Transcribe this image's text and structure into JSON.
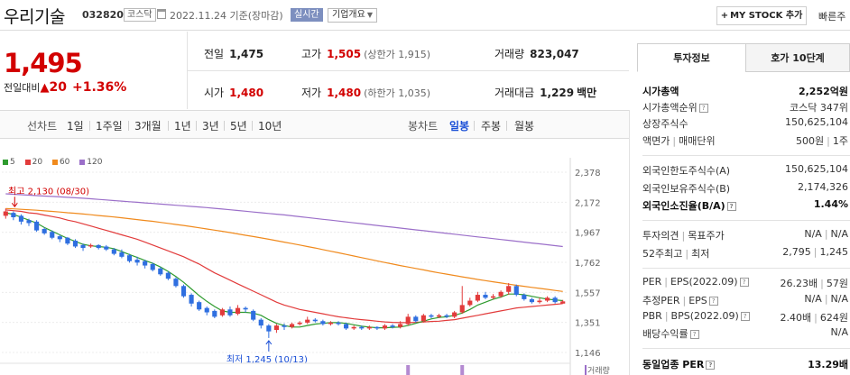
{
  "header": {
    "company_name": "우리기술",
    "code": "032820",
    "market": "코스닥",
    "date_text": "2022.11.24 기준(장마감)",
    "realtime": "실시간",
    "overview": "기업개요",
    "mystock_button": "MY STOCK 추가",
    "quick_link": "빠른주"
  },
  "price": {
    "current": "1,495",
    "change_label": "전일대비",
    "change_value": "20",
    "change_percent": "+1.36%",
    "prev_close_label": "전일",
    "prev_close": "1,475",
    "high_label": "고가",
    "high": "1,505",
    "upper_limit_label": "상한가",
    "upper_limit": "1,915",
    "volume_label": "거래량",
    "volume": "823,047",
    "open_label": "시가",
    "open": "1,480",
    "low_label": "저가",
    "low": "1,480",
    "lower_limit_label": "하한가",
    "lower_limit": "1,035",
    "amount_label": "거래대금",
    "amount": "1,229",
    "amount_unit": "백만"
  },
  "period_bar": {
    "line_chart_label": "선차트",
    "line_periods": [
      "1일",
      "1주일",
      "3개월",
      "1년",
      "3년",
      "5년",
      "10년"
    ],
    "candle_label": "봉차트",
    "candle_periods": [
      "일봉",
      "주봉",
      "월봉"
    ],
    "active": "일봉"
  },
  "chart_data": {
    "type": "candlestick",
    "legend": [
      {
        "name": "5",
        "color": "#2e9b2e"
      },
      {
        "name": "20",
        "color": "#e23b3b"
      },
      {
        "name": "60",
        "color": "#f08a1d"
      },
      {
        "name": "120",
        "color": "#9b6fc9"
      }
    ],
    "y_ticks": [
      "2,378",
      "2,172",
      "1,967",
      "1,762",
      "1,557",
      "1,351",
      "1,146"
    ],
    "ylim": [
      1146,
      2378
    ],
    "high_annotation": "최고 2,130 (08/30)",
    "low_annotation": "최저 1,245 (10/13)",
    "volume_label": "거래량",
    "up_color": "#e23b3b",
    "down_color": "#2f6fe0",
    "candles": [
      {
        "o": 2080,
        "c": 2110,
        "h": 2130,
        "l": 2060
      },
      {
        "o": 2100,
        "c": 2070,
        "h": 2110,
        "l": 2050
      },
      {
        "o": 2080,
        "c": 2040,
        "h": 2090,
        "l": 2020
      },
      {
        "o": 2050,
        "c": 2030,
        "h": 2060,
        "l": 2010
      },
      {
        "o": 2040,
        "c": 1980,
        "h": 2050,
        "l": 1970
      },
      {
        "o": 1990,
        "c": 1960,
        "h": 2000,
        "l": 1950
      },
      {
        "o": 1970,
        "c": 1930,
        "h": 1980,
        "l": 1920
      },
      {
        "o": 1940,
        "c": 1920,
        "h": 1950,
        "l": 1900
      },
      {
        "o": 1930,
        "c": 1890,
        "h": 1935,
        "l": 1880
      },
      {
        "o": 1910,
        "c": 1870,
        "h": 1920,
        "l": 1860
      },
      {
        "o": 1880,
        "c": 1860,
        "h": 1890,
        "l": 1840
      },
      {
        "o": 1870,
        "c": 1880,
        "h": 1890,
        "l": 1860
      },
      {
        "o": 1880,
        "c": 1860,
        "h": 1885,
        "l": 1850
      },
      {
        "o": 1870,
        "c": 1850,
        "h": 1880,
        "l": 1840
      },
      {
        "o": 1850,
        "c": 1820,
        "h": 1860,
        "l": 1810
      },
      {
        "o": 1830,
        "c": 1800,
        "h": 1850,
        "l": 1790
      },
      {
        "o": 1810,
        "c": 1770,
        "h": 1820,
        "l": 1760
      },
      {
        "o": 1780,
        "c": 1760,
        "h": 1800,
        "l": 1740
      },
      {
        "o": 1770,
        "c": 1740,
        "h": 1780,
        "l": 1720
      },
      {
        "o": 1750,
        "c": 1710,
        "h": 1760,
        "l": 1700
      },
      {
        "o": 1720,
        "c": 1680,
        "h": 1730,
        "l": 1670
      },
      {
        "o": 1690,
        "c": 1650,
        "h": 1700,
        "l": 1640
      },
      {
        "o": 1650,
        "c": 1600,
        "h": 1660,
        "l": 1590
      },
      {
        "o": 1600,
        "c": 1530,
        "h": 1610,
        "l": 1520
      },
      {
        "o": 1540,
        "c": 1480,
        "h": 1550,
        "l": 1460
      },
      {
        "o": 1490,
        "c": 1440,
        "h": 1500,
        "l": 1430
      },
      {
        "o": 1450,
        "c": 1420,
        "h": 1460,
        "l": 1400
      },
      {
        "o": 1430,
        "c": 1390,
        "h": 1440,
        "l": 1380
      },
      {
        "o": 1400,
        "c": 1440,
        "h": 1450,
        "l": 1390
      },
      {
        "o": 1440,
        "c": 1400,
        "h": 1460,
        "l": 1390
      },
      {
        "o": 1410,
        "c": 1450,
        "h": 1470,
        "l": 1400
      },
      {
        "o": 1450,
        "c": 1440,
        "h": 1460,
        "l": 1420
      },
      {
        "o": 1430,
        "c": 1370,
        "h": 1440,
        "l": 1360
      },
      {
        "o": 1370,
        "c": 1330,
        "h": 1380,
        "l": 1310
      },
      {
        "o": 1330,
        "c": 1290,
        "h": 1340,
        "l": 1245
      },
      {
        "o": 1300,
        "c": 1330,
        "h": 1340,
        "l": 1280
      },
      {
        "o": 1330,
        "c": 1320,
        "h": 1345,
        "l": 1300
      },
      {
        "o": 1320,
        "c": 1340,
        "h": 1350,
        "l": 1310
      },
      {
        "o": 1340,
        "c": 1350,
        "h": 1360,
        "l": 1330
      },
      {
        "o": 1350,
        "c": 1370,
        "h": 1390,
        "l": 1340
      },
      {
        "o": 1370,
        "c": 1360,
        "h": 1380,
        "l": 1350
      },
      {
        "o": 1360,
        "c": 1340,
        "h": 1370,
        "l": 1330
      },
      {
        "o": 1340,
        "c": 1350,
        "h": 1360,
        "l": 1330
      },
      {
        "o": 1350,
        "c": 1340,
        "h": 1360,
        "l": 1330
      },
      {
        "o": 1340,
        "c": 1310,
        "h": 1350,
        "l": 1300
      },
      {
        "o": 1310,
        "c": 1320,
        "h": 1330,
        "l": 1300
      },
      {
        "o": 1320,
        "c": 1310,
        "h": 1330,
        "l": 1300
      },
      {
        "o": 1310,
        "c": 1320,
        "h": 1330,
        "l": 1300
      },
      {
        "o": 1320,
        "c": 1310,
        "h": 1325,
        "l": 1300
      },
      {
        "o": 1310,
        "c": 1330,
        "h": 1340,
        "l": 1300
      },
      {
        "o": 1330,
        "c": 1320,
        "h": 1340,
        "l": 1310
      },
      {
        "o": 1320,
        "c": 1340,
        "h": 1360,
        "l": 1310
      },
      {
        "o": 1340,
        "c": 1390,
        "h": 1410,
        "l": 1330
      },
      {
        "o": 1390,
        "c": 1360,
        "h": 1400,
        "l": 1350
      },
      {
        "o": 1360,
        "c": 1400,
        "h": 1410,
        "l": 1350
      },
      {
        "o": 1400,
        "c": 1390,
        "h": 1410,
        "l": 1380
      },
      {
        "o": 1390,
        "c": 1400,
        "h": 1410,
        "l": 1380
      },
      {
        "o": 1400,
        "c": 1390,
        "h": 1410,
        "l": 1380
      },
      {
        "o": 1390,
        "c": 1420,
        "h": 1430,
        "l": 1380
      },
      {
        "o": 1420,
        "c": 1470,
        "h": 1600,
        "l": 1410
      },
      {
        "o": 1470,
        "c": 1500,
        "h": 1520,
        "l": 1460
      },
      {
        "o": 1500,
        "c": 1540,
        "h": 1560,
        "l": 1490
      },
      {
        "o": 1540,
        "c": 1520,
        "h": 1560,
        "l": 1510
      },
      {
        "o": 1520,
        "c": 1530,
        "h": 1545,
        "l": 1510
      },
      {
        "o": 1530,
        "c": 1560,
        "h": 1570,
        "l": 1520
      },
      {
        "o": 1560,
        "c": 1600,
        "h": 1620,
        "l": 1540
      },
      {
        "o": 1600,
        "c": 1540,
        "h": 1610,
        "l": 1530
      },
      {
        "o": 1540,
        "c": 1510,
        "h": 1550,
        "l": 1500
      },
      {
        "o": 1510,
        "c": 1490,
        "h": 1520,
        "l": 1480
      },
      {
        "o": 1490,
        "c": 1500,
        "h": 1520,
        "l": 1480
      },
      {
        "o": 1500,
        "c": 1520,
        "h": 1530,
        "l": 1490
      },
      {
        "o": 1520,
        "c": 1490,
        "h": 1530,
        "l": 1480
      },
      {
        "o": 1480,
        "c": 1495,
        "h": 1505,
        "l": 1480
      }
    ],
    "ma5": [
      2100,
      2090,
      2070,
      2050,
      2030,
      2000,
      1975,
      1950,
      1925,
      1905,
      1885,
      1875,
      1870,
      1865,
      1855,
      1835,
      1815,
      1795,
      1775,
      1755,
      1730,
      1700,
      1665,
      1625,
      1580,
      1535,
      1495,
      1460,
      1430,
      1420,
      1420,
      1420,
      1415,
      1400,
      1370,
      1345,
      1330,
      1320,
      1320,
      1330,
      1340,
      1345,
      1350,
      1350,
      1345,
      1335,
      1325,
      1320,
      1315,
      1315,
      1318,
      1320,
      1330,
      1345,
      1360,
      1375,
      1385,
      1390,
      1400,
      1415,
      1440,
      1470,
      1490,
      1510,
      1525,
      1545,
      1545,
      1540,
      1530,
      1520,
      1510,
      1505,
      1500
    ],
    "ma20": [
      2120,
      2115,
      2110,
      2100,
      2095,
      2085,
      2075,
      2065,
      2050,
      2040,
      2025,
      2010,
      1995,
      1980,
      1965,
      1950,
      1935,
      1920,
      1900,
      1880,
      1860,
      1840,
      1820,
      1800,
      1775,
      1750,
      1720,
      1690,
      1665,
      1640,
      1615,
      1590,
      1565,
      1540,
      1515,
      1490,
      1470,
      1455,
      1440,
      1430,
      1420,
      1410,
      1400,
      1390,
      1383,
      1376,
      1370,
      1365,
      1360,
      1355,
      1352,
      1350,
      1350,
      1352,
      1355,
      1358,
      1360,
      1365,
      1370,
      1380,
      1390,
      1400,
      1410,
      1420,
      1430,
      1440,
      1450,
      1455,
      1460,
      1465,
      1470,
      1475,
      1480
    ],
    "ma60": [
      2130,
      2127,
      2124,
      2121,
      2118,
      2114,
      2110,
      2106,
      2101,
      2097,
      2092,
      2087,
      2082,
      2077,
      2072,
      2066,
      2060,
      2054,
      2048,
      2042,
      2035,
      2028,
      2021,
      2014,
      2006,
      1998,
      1990,
      1982,
      1974,
      1965,
      1956,
      1947,
      1938,
      1929,
      1920,
      1910,
      1900,
      1890,
      1880,
      1870,
      1860,
      1849,
      1838,
      1827,
      1816,
      1805,
      1794,
      1783,
      1772,
      1761,
      1750,
      1740,
      1730,
      1720,
      1710,
      1700,
      1690,
      1681,
      1672,
      1663,
      1654,
      1645,
      1637,
      1629,
      1621,
      1613,
      1605,
      1598,
      1591,
      1584,
      1577,
      1570,
      1563
    ],
    "ma120": [
      2230,
      2227,
      2224,
      2221,
      2218,
      2215,
      2212,
      2209,
      2206,
      2203,
      2200,
      2196,
      2192,
      2188,
      2184,
      2180,
      2176,
      2172,
      2168,
      2164,
      2160,
      2156,
      2152,
      2148,
      2144,
      2140,
      2136,
      2131,
      2126,
      2121,
      2116,
      2111,
      2106,
      2101,
      2096,
      2091,
      2086,
      2080,
      2074,
      2068,
      2062,
      2056,
      2050,
      2044,
      2038,
      2032,
      2026,
      2020,
      2014,
      2008,
      2002,
      1996,
      1990,
      1984,
      1978,
      1972,
      1966,
      1960,
      1954,
      1948,
      1942,
      1936,
      1930,
      1924,
      1918,
      1912,
      1906,
      1900,
      1894,
      1888,
      1882,
      1876,
      1870
    ]
  },
  "invest_panel": {
    "tab_active": "투자정보",
    "tab_inactive": "호가 10단계",
    "market_cap_label": "시가총액",
    "market_cap": "2,252억원",
    "cap_rank_label": "시가총액순위",
    "cap_rank": "코스닥 347위",
    "shares_label": "상장주식수",
    "shares": "150,625,104",
    "par_label": "액면가",
    "unit_label": "매매단위",
    "par_value": "500원",
    "unit_value": "1주",
    "foreign_limit_label": "외국인한도주식수(A)",
    "foreign_limit": "150,625,104",
    "foreign_hold_label": "외국인보유주식수(B)",
    "foreign_hold": "2,174,326",
    "foreign_ratio_label": "외국인소진율(B/A)",
    "foreign_ratio": "1.44%",
    "opinion_label": "투자의견",
    "target_label": "목표주가",
    "opinion_value": "N/A",
    "target_value": "N/A",
    "w52_high_label": "52주최고",
    "w52_low_label": "최저",
    "w52_high": "2,795",
    "w52_low": "1,245",
    "per_label": "PER",
    "eps_label": "EPS(2022.09)",
    "per_value": "26.23배",
    "eps_value": "57원",
    "est_per_label": "추정PER",
    "est_eps_label": "EPS",
    "est_per_value": "N/A",
    "est_eps_value": "N/A",
    "pbr_label": "PBR",
    "bps_label": "BPS(2022.09)",
    "pbr_value": "2.40배",
    "bps_value": "624원",
    "div_label": "배당수익률",
    "div_value": "N/A",
    "sector_per_label": "동일업종 PER",
    "sector_per_value": "13.29배"
  }
}
